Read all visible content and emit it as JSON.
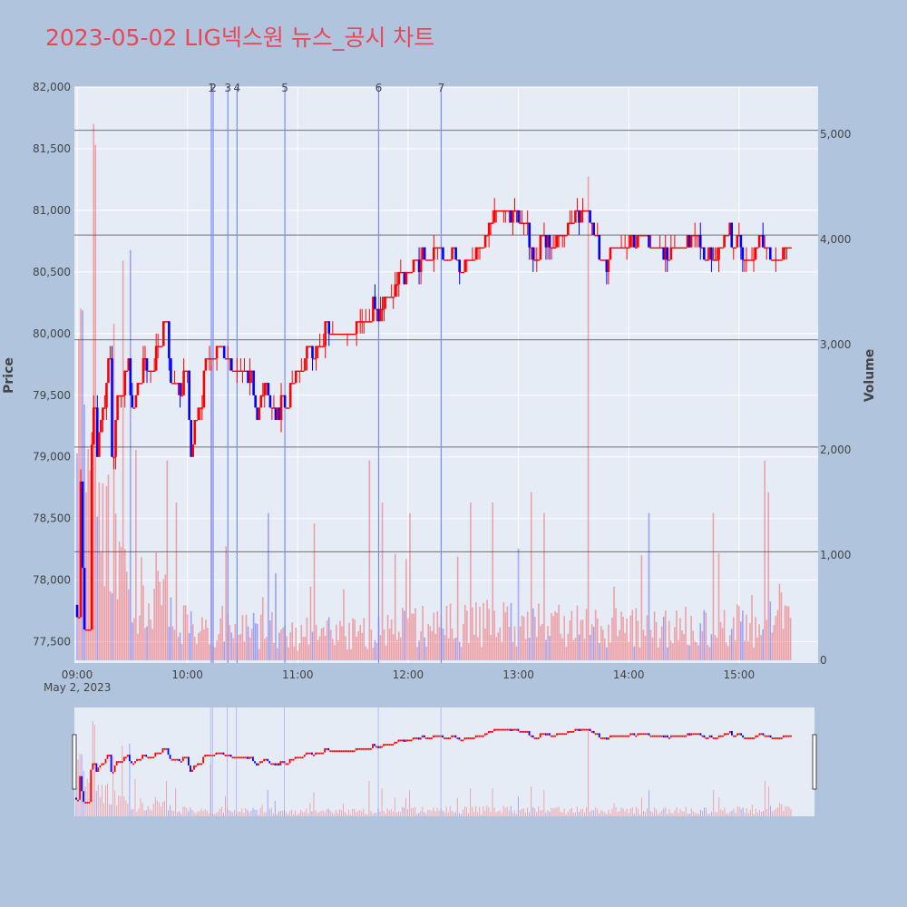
{
  "page": {
    "title": "2023-05-02 LIG넥스원 뉴스_공시 차트",
    "background": "#b0c4de"
  },
  "chart_data": {
    "type": "candlestick",
    "title": "2023-05-02 LIG넥스원 뉴스_공시 차트",
    "ylabel": "Price",
    "y2label": "Volume",
    "date_label": "May 2, 2023",
    "x_ticks": [
      "09:00",
      "10:00",
      "11:00",
      "12:00",
      "13:00",
      "14:00",
      "15:00"
    ],
    "x_range_minutes": [
      0,
      390
    ],
    "price_ticks": [
      "77,500",
      "78,000",
      "78,500",
      "79,000",
      "79,500",
      "80,000",
      "80,500",
      "81,000",
      "81,500",
      "82,000"
    ],
    "price_tick_values": [
      77500,
      78000,
      78500,
      79000,
      79500,
      80000,
      80500,
      81000,
      81500,
      82000
    ],
    "price_range": [
      77350,
      82000
    ],
    "volume_ticks": [
      "0",
      "1,000",
      "2,000",
      "3,000",
      "4,000",
      "5,000"
    ],
    "volume_tick_values": [
      0,
      1000,
      2000,
      3000,
      4000,
      5000
    ],
    "volume_range": [
      0,
      5450
    ],
    "horizontal_lines": [
      81650,
      80800,
      79950,
      79080,
      78230
    ],
    "news_markers": [
      {
        "label": "1",
        "minute": 73
      },
      {
        "label": "2",
        "minute": 74
      },
      {
        "label": "3",
        "minute": 82
      },
      {
        "label": "4",
        "minute": 87
      },
      {
        "label": "5",
        "minute": 113
      },
      {
        "label": "6",
        "minute": 164
      },
      {
        "label": "7",
        "minute": 198
      }
    ],
    "price_path": [
      [
        0,
        77800
      ],
      [
        2,
        78800
      ],
      [
        4,
        77600
      ],
      [
        7,
        78900
      ],
      [
        9,
        79300
      ],
      [
        11,
        79000
      ],
      [
        14,
        79400
      ],
      [
        17,
        79700
      ],
      [
        19,
        79000
      ],
      [
        22,
        79400
      ],
      [
        25,
        79600
      ],
      [
        28,
        79800
      ],
      [
        30,
        79300
      ],
      [
        33,
        79600
      ],
      [
        36,
        79800
      ],
      [
        39,
        79700
      ],
      [
        42,
        79900
      ],
      [
        45,
        80000
      ],
      [
        48,
        80100
      ],
      [
        50,
        79800
      ],
      [
        53,
        79500
      ],
      [
        56,
        79600
      ],
      [
        59,
        79700
      ],
      [
        62,
        79100
      ],
      [
        65,
        79300
      ],
      [
        68,
        79600
      ],
      [
        71,
        79800
      ],
      [
        74,
        79900
      ],
      [
        78,
        79900
      ],
      [
        82,
        79800
      ],
      [
        86,
        79700
      ],
      [
        90,
        79600
      ],
      [
        94,
        79700
      ],
      [
        98,
        79400
      ],
      [
        102,
        79600
      ],
      [
        106,
        79300
      ],
      [
        110,
        79400
      ],
      [
        114,
        79500
      ],
      [
        118,
        79700
      ],
      [
        122,
        79800
      ],
      [
        126,
        79900
      ],
      [
        130,
        79800
      ],
      [
        134,
        80000
      ],
      [
        138,
        80100
      ],
      [
        142,
        80000
      ],
      [
        146,
        79900
      ],
      [
        150,
        80000
      ],
      [
        155,
        80100
      ],
      [
        160,
        80200
      ],
      [
        165,
        80200
      ],
      [
        170,
        80300
      ],
      [
        175,
        80400
      ],
      [
        180,
        80500
      ],
      [
        185,
        80600
      ],
      [
        190,
        80600
      ],
      [
        195,
        80700
      ],
      [
        200,
        80700
      ],
      [
        205,
        80600
      ],
      [
        210,
        80600
      ],
      [
        215,
        80600
      ],
      [
        220,
        80700
      ],
      [
        225,
        80900
      ],
      [
        228,
        81000
      ],
      [
        232,
        81000
      ],
      [
        236,
        81000
      ],
      [
        240,
        80900
      ],
      [
        243,
        80700
      ],
      [
        246,
        80600
      ],
      [
        250,
        80700
      ],
      [
        255,
        80800
      ],
      [
        260,
        80700
      ],
      [
        265,
        80800
      ],
      [
        270,
        80900
      ],
      [
        275,
        81000
      ],
      [
        280,
        80900
      ],
      [
        283,
        80600
      ],
      [
        286,
        80500
      ],
      [
        290,
        80700
      ],
      [
        295,
        80800
      ],
      [
        300,
        80700
      ],
      [
        305,
        80800
      ],
      [
        310,
        80800
      ],
      [
        315,
        80700
      ],
      [
        320,
        80600
      ],
      [
        325,
        80700
      ],
      [
        330,
        80700
      ],
      [
        335,
        80800
      ],
      [
        340,
        80700
      ],
      [
        345,
        80700
      ],
      [
        350,
        80700
      ],
      [
        355,
        80800
      ],
      [
        360,
        80700
      ],
      [
        365,
        80600
      ],
      [
        370,
        80700
      ],
      [
        375,
        80700
      ],
      [
        380,
        80600
      ],
      [
        385,
        80600
      ]
    ],
    "volume_profile": [
      [
        0,
        3700
      ],
      [
        3,
        2800
      ],
      [
        6,
        2200
      ],
      [
        9,
        1900
      ],
      [
        12,
        1600
      ],
      [
        15,
        1300
      ],
      [
        20,
        1100
      ],
      [
        25,
        1000
      ],
      [
        30,
        800
      ],
      [
        40,
        700
      ],
      [
        55,
        500
      ],
      [
        70,
        400
      ],
      [
        90,
        350
      ],
      [
        110,
        300
      ],
      [
        130,
        300
      ],
      [
        150,
        320
      ],
      [
        170,
        350
      ],
      [
        190,
        380
      ],
      [
        210,
        400
      ],
      [
        230,
        420
      ],
      [
        250,
        400
      ],
      [
        270,
        380
      ],
      [
        290,
        360
      ],
      [
        310,
        360
      ],
      [
        330,
        370
      ],
      [
        350,
        380
      ],
      [
        370,
        400
      ],
      [
        380,
        420
      ],
      [
        385,
        450
      ]
    ],
    "volume_spikes": [
      [
        9,
        5100
      ],
      [
        10,
        4900
      ],
      [
        20,
        3200
      ],
      [
        25,
        3800
      ],
      [
        29,
        3900
      ],
      [
        32,
        2000
      ],
      [
        49,
        1900
      ],
      [
        54,
        1500
      ],
      [
        73,
        2800
      ],
      [
        104,
        1400
      ],
      [
        129,
        1300
      ],
      [
        159,
        1900
      ],
      [
        166,
        1500
      ],
      [
        181,
        1400
      ],
      [
        214,
        1500
      ],
      [
        226,
        1500
      ],
      [
        247,
        1600
      ],
      [
        254,
        1400
      ],
      [
        278,
        4600
      ],
      [
        311,
        1400
      ],
      [
        346,
        1400
      ],
      [
        374,
        1900
      ],
      [
        376,
        1600
      ]
    ],
    "colors": {
      "up": "#ff0000",
      "down": "#0000ff",
      "plot_bg": "#e5ecf6",
      "grid": "#ffffff",
      "hline": "#707070",
      "marker_line": "#7b8cf5",
      "title": "#e8475a",
      "axis_text": "#444444"
    }
  }
}
